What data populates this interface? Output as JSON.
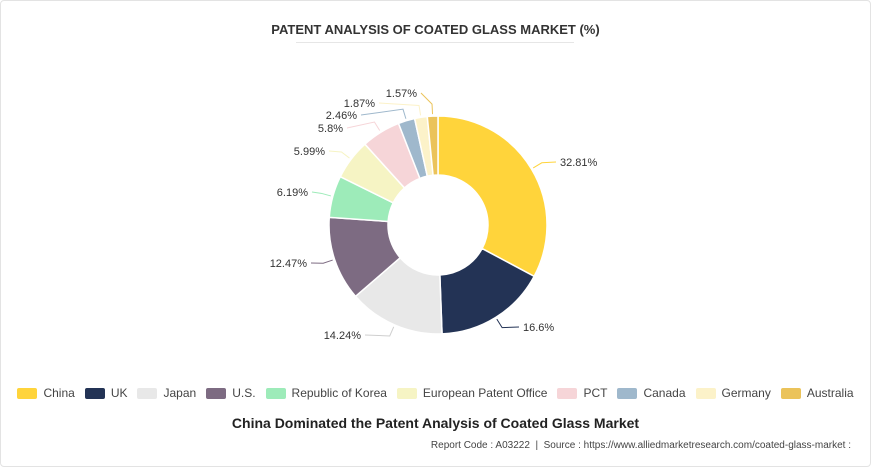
{
  "title": "PATENT ANALYSIS OF COATED GLASS MARKET (%)",
  "caption": "China Dominated the Patent Analysis of Coated Glass Market",
  "footer": {
    "report_code_label": "Report Code :",
    "report_code": "A03222",
    "separator": "|",
    "source_label": "Source :",
    "source": "https://www.alliedmarketresearch.com/coated-glass-market :"
  },
  "chart_data": {
    "type": "pie",
    "variant": "donut",
    "legend_position": "bottom",
    "slices": [
      {
        "name": "China",
        "value": 32.81,
        "label": "32.81%",
        "color": "#FFD43B"
      },
      {
        "name": "UK",
        "value": 16.6,
        "label": "16.6%",
        "color": "#233355"
      },
      {
        "name": "Japan",
        "value": 14.24,
        "label": "14.24%",
        "color": "#E8E8E8"
      },
      {
        "name": "U.S.",
        "value": 12.47,
        "label": "12.47%",
        "color": "#7D6B82"
      },
      {
        "name": "Republic of Korea",
        "value": 6.19,
        "label": "6.19%",
        "color": "#9DEBB9"
      },
      {
        "name": "European Patent Office",
        "value": 5.99,
        "label": "5.99%",
        "color": "#F6F4C4"
      },
      {
        "name": "PCT",
        "value": 5.8,
        "label": "5.8%",
        "color": "#F6D5D8"
      },
      {
        "name": "Canada",
        "value": 2.46,
        "label": "2.46%",
        "color": "#9FB8CC"
      },
      {
        "name": "Germany",
        "value": 1.87,
        "label": "1.87%",
        "color": "#FCF2C9"
      },
      {
        "name": "Australia",
        "value": 1.57,
        "label": "1.57%",
        "color": "#EBC35A"
      }
    ]
  }
}
